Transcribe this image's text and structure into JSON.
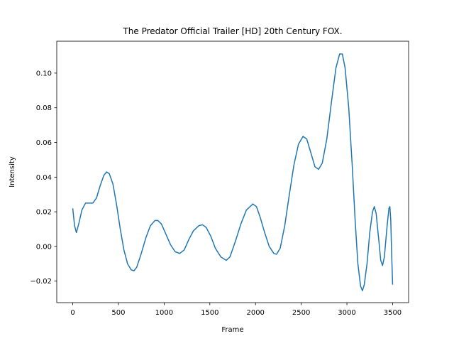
{
  "chart_data": {
    "type": "line",
    "title": "The Predator  Official Trailer [HD]  20th Century FOX.",
    "xlabel": "Frame",
    "ylabel": "Intensity",
    "color": "#1f77b4",
    "x": [
      0,
      20,
      40,
      70,
      100,
      140,
      180,
      220,
      260,
      300,
      340,
      370,
      400,
      440,
      480,
      520,
      560,
      600,
      640,
      670,
      700,
      750,
      800,
      850,
      900,
      930,
      970,
      1020,
      1070,
      1120,
      1170,
      1220,
      1270,
      1320,
      1380,
      1420,
      1460,
      1510,
      1560,
      1620,
      1680,
      1720,
      1780,
      1840,
      1900,
      1970,
      2010,
      2050,
      2100,
      2150,
      2200,
      2230,
      2270,
      2320,
      2370,
      2420,
      2470,
      2520,
      2560,
      2600,
      2650,
      2690,
      2730,
      2780,
      2830,
      2880,
      2920,
      2950,
      2980,
      3020,
      3060,
      3090,
      3120,
      3150,
      3170,
      3190,
      3220,
      3250,
      3280,
      3300,
      3320,
      3350,
      3370,
      3390,
      3410,
      3440,
      3460,
      3470,
      3480,
      3490,
      3500
    ],
    "values": [
      0.022,
      0.012,
      0.008,
      0.014,
      0.021,
      0.025,
      0.025,
      0.025,
      0.028,
      0.035,
      0.041,
      0.043,
      0.042,
      0.036,
      0.024,
      0.01,
      -0.002,
      -0.01,
      -0.0135,
      -0.014,
      -0.012,
      -0.004,
      0.005,
      0.012,
      0.015,
      0.015,
      0.013,
      0.007,
      0.001,
      -0.003,
      -0.004,
      -0.002,
      0.004,
      0.009,
      0.012,
      0.0125,
      0.011,
      0.006,
      -0.001,
      -0.006,
      -0.008,
      -0.006,
      0.003,
      0.013,
      0.021,
      0.0245,
      0.023,
      0.017,
      0.008,
      0.0,
      -0.004,
      -0.0045,
      -0.001,
      0.012,
      0.03,
      0.047,
      0.059,
      0.0635,
      0.062,
      0.055,
      0.046,
      0.0445,
      0.048,
      0.062,
      0.083,
      0.103,
      0.111,
      0.111,
      0.103,
      0.08,
      0.045,
      0.015,
      -0.01,
      -0.023,
      -0.0255,
      -0.022,
      -0.01,
      0.008,
      0.02,
      0.023,
      0.019,
      0.003,
      -0.008,
      -0.011,
      -0.006,
      0.012,
      0.022,
      0.023,
      0.015,
      -0.005,
      -0.022
    ],
    "xlim": [
      -175,
      3675
    ],
    "ylim": [
      -0.0324,
      0.1184
    ],
    "xticks": [
      0,
      500,
      1000,
      1500,
      2000,
      2500,
      3000,
      3500
    ],
    "yticks": [
      {
        "value": -0.02,
        "label": "−0.02"
      },
      {
        "value": 0,
        "label": "0.00"
      },
      0.02,
      0.04,
      0.06,
      0.08,
      {
        "value": 0.1,
        "label": "0.10"
      }
    ]
  }
}
